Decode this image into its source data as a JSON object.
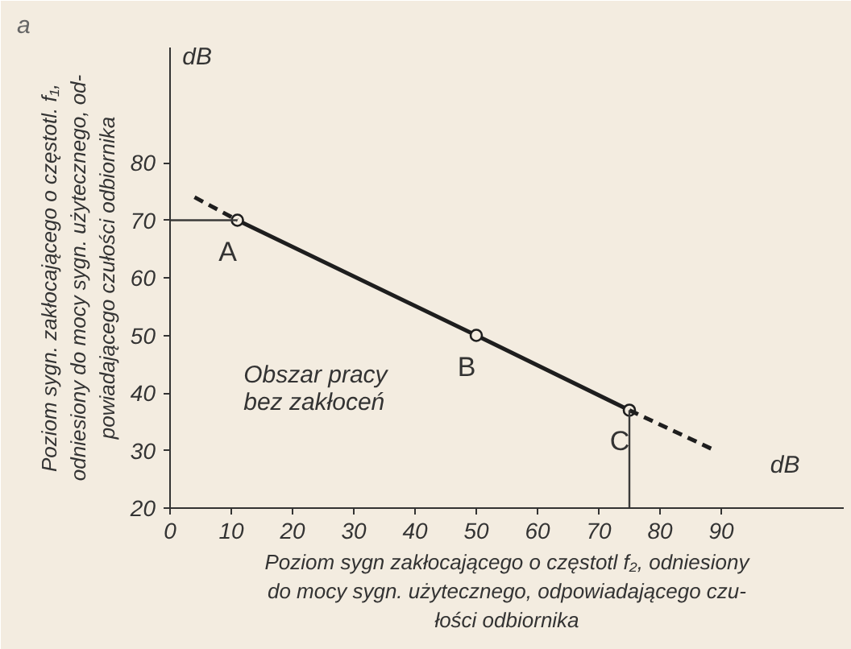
{
  "chart_data": {
    "type": "line",
    "title": "a",
    "xlabel": "Poziom sygn zakłocającego o częstotl f₂, odniesiony\ndo mocy sygn. użytecznego, odpowiadającego czu-\nłości odbiornika",
    "ylabel": "Poziom sygn. zakłocającego o częstotl. f₁,\nodniesiony do mocy sygn. użytecznego, od-\npowiadającego czułości odbiornika",
    "series": [
      {
        "color": "#1e1e1e",
        "x": [
          11,
          50,
          75
        ],
        "values": [
          70,
          50,
          37
        ],
        "marker": "circle",
        "line_style": "solid"
      },
      {
        "color": "#1e1e1e",
        "x": [
          4,
          11
        ],
        "values": [
          74,
          70
        ],
        "marker": "none",
        "line_style": "dashed"
      },
      {
        "color": "#1e1e1e",
        "x": [
          75,
          89
        ],
        "values": [
          37,
          30
        ],
        "marker": "none",
        "line_style": "dashed"
      },
      {
        "color": "#3a3a3a",
        "x": [
          0,
          11
        ],
        "values": [
          70,
          70
        ],
        "marker": "none",
        "line_style": "solid"
      },
      {
        "color": "#3a3a3a",
        "x": [
          75,
          75
        ],
        "values": [
          20,
          37
        ],
        "marker": "none",
        "line_style": "solid"
      }
    ],
    "annotations": [
      {
        "text": "A",
        "x": 11,
        "y": 70
      },
      {
        "text": "B",
        "x": 50,
        "y": 50
      },
      {
        "text": "C",
        "x": 75,
        "y": 37
      },
      "Obszar pracy\nbez zakłoceń",
      "dB",
      "dB"
    ],
    "xlim": [
      0,
      110
    ],
    "ylim": [
      20,
      100
    ],
    "xticks": [
      0,
      10,
      20,
      30,
      40,
      50,
      60,
      70,
      80,
      90
    ],
    "yticks": [
      20,
      30,
      40,
      50,
      60,
      70,
      80
    ],
    "grid": false
  }
}
